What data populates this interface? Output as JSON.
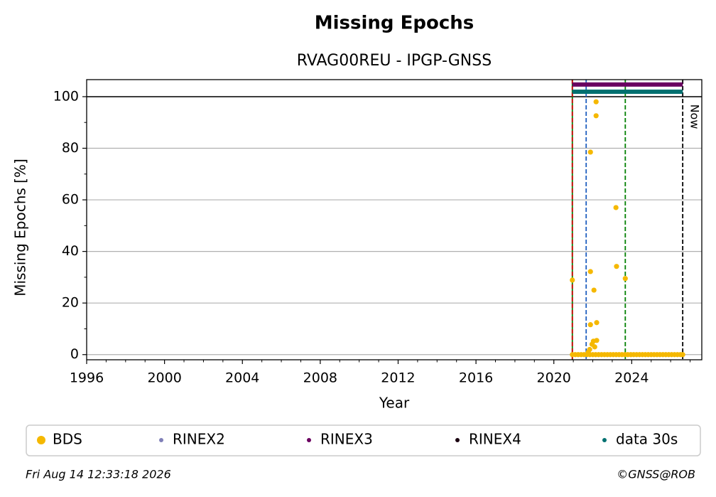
{
  "chart_data": {
    "type": "scatter",
    "title": "Missing Epochs",
    "subtitle": "RVAG00REU - IPGP-GNSS",
    "x_label": "Year",
    "y_label": "Missing Epochs [%]",
    "xlim": [
      1996,
      2027.6
    ],
    "ylim": [
      -2,
      106.6
    ],
    "xticks": [
      1996,
      2000,
      2004,
      2008,
      2012,
      2016,
      2020,
      2024
    ],
    "xminorticks": [
      1997,
      1998,
      1999,
      2001,
      2002,
      2003,
      2005,
      2006,
      2007,
      2009,
      2010,
      2011,
      2013,
      2014,
      2015,
      2017,
      2018,
      2019,
      2021,
      2022,
      2023,
      2025,
      2026,
      2027
    ],
    "yticks": [
      0,
      20,
      40,
      60,
      80,
      100
    ],
    "yminorticks": [
      10,
      30,
      50,
      70,
      90
    ],
    "grid": true,
    "hline": 100,
    "vertical_lines": [
      {
        "x": 2020.95,
        "color": "#008000",
        "dashed": false
      },
      {
        "x": 2020.95,
        "color": "#cc0000",
        "dashed": true
      },
      {
        "x": 2021.66,
        "color": "#1f5fbf",
        "dashed": true
      },
      {
        "x": 2023.67,
        "color": "#008000",
        "dashed": true
      },
      {
        "x": 2026.62,
        "color": "#000000",
        "dashed": true
      }
    ],
    "annotation": {
      "text": "Now",
      "x": 2026.62
    },
    "series": [
      {
        "name": "BDS",
        "color": "#f5b800",
        "style": "dots",
        "x": [
          2020.95,
          2021.1,
          2021.25,
          2021.4,
          2021.55,
          2021.7,
          2021.85,
          2022.0,
          2022.15,
          2022.3,
          2022.45,
          2022.6,
          2022.75,
          2022.9,
          2023.05,
          2023.2,
          2023.35,
          2023.5,
          2023.65,
          2023.8,
          2023.95,
          2024.1,
          2024.25,
          2024.4,
          2024.55,
          2024.7,
          2024.85,
          2025.0,
          2025.15,
          2025.3,
          2025.45,
          2025.6,
          2025.75,
          2025.9,
          2026.05,
          2026.2,
          2026.35,
          2026.5,
          2026.62,
          2020.95,
          2021.88,
          2022.06,
          2022.17,
          2022.17,
          2021.88,
          2023.19,
          2023.22,
          2023.67,
          2021.88,
          2022.2,
          2022.03,
          2022.2,
          2021.96,
          2022.1,
          2021.84,
          2021.77
        ],
        "values": [
          0,
          0,
          0,
          0,
          0,
          0,
          0,
          0,
          0,
          0,
          0,
          0,
          0,
          0,
          0,
          0,
          0,
          0,
          0,
          0,
          0,
          0,
          0,
          0,
          0,
          0,
          0,
          0,
          0,
          0,
          0,
          0,
          0,
          0,
          0,
          0,
          0,
          0,
          0,
          28.9,
          32.2,
          25,
          98,
          92.6,
          78.5,
          57,
          34.2,
          29.5,
          11.6,
          12.4,
          5.2,
          5.5,
          4,
          3,
          2,
          1
        ]
      },
      {
        "name": "RINEX2",
        "color": "#8080b8",
        "style": "band",
        "x": [],
        "values": []
      },
      {
        "name": "RINEX3",
        "color": "#6a0060",
        "style": "band",
        "x": [
          2020.95,
          2026.62
        ],
        "values": [
          104.7,
          104.7
        ]
      },
      {
        "name": "RINEX4",
        "color": "#1a0010",
        "style": "band",
        "x": [],
        "values": []
      },
      {
        "name": "data 30s",
        "color": "#007070",
        "style": "band",
        "x": [
          2020.95,
          2026.62
        ],
        "values": [
          101.9,
          101.9
        ]
      }
    ],
    "footer_left": "Fri Aug 14 12:33:18 2026",
    "footer_right": "©GNSS@ROB"
  }
}
